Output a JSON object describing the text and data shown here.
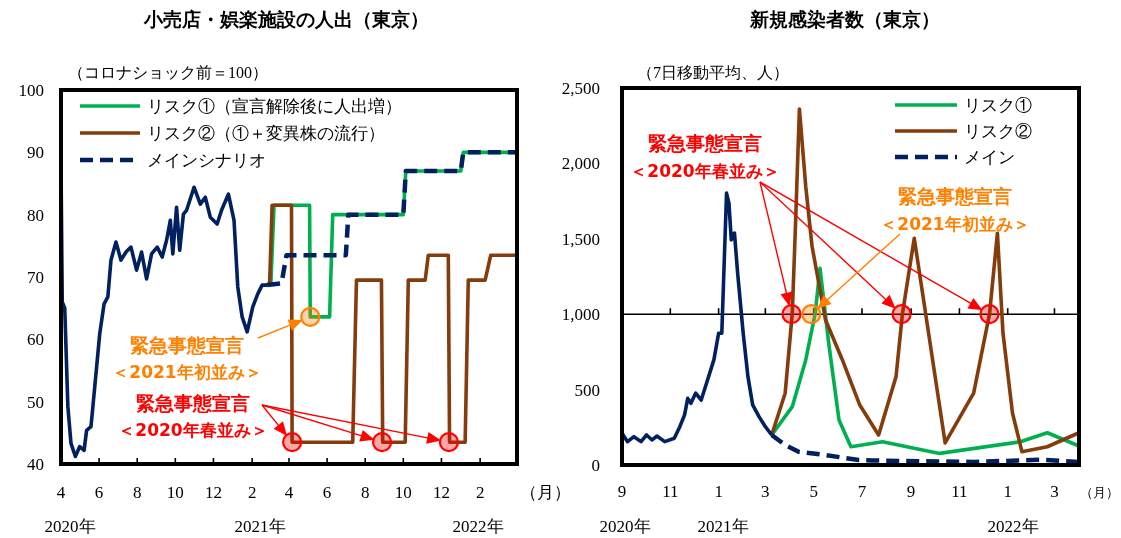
{
  "chart_data": [
    {
      "type": "line",
      "title": "小売店・娯楽施設の人出（東京）",
      "ylabel": "（コロナショック前＝100）",
      "xlabel": "（月）",
      "legend": "top left",
      "xlim": [
        "2020-04-01",
        "2022-04-01"
      ],
      "ylim": [
        40,
        100
      ],
      "yticks": [
        40,
        50,
        60,
        70,
        80,
        90,
        100
      ],
      "xticks": [
        {
          "value": "2020-04-01",
          "label": "4"
        },
        {
          "value": "2020-06-01",
          "label": "6"
        },
        {
          "value": "2020-08-01",
          "label": "8"
        },
        {
          "value": "2020-10-01",
          "label": "10"
        },
        {
          "value": "2020-12-01",
          "label": "12"
        },
        {
          "value": "2021-02-01",
          "label": "2"
        },
        {
          "value": "2021-04-01",
          "label": "4"
        },
        {
          "value": "2021-06-01",
          "label": "6"
        },
        {
          "value": "2021-08-01",
          "label": "8"
        },
        {
          "value": "2021-10-01",
          "label": "10"
        },
        {
          "value": "2021-12-01",
          "label": "12"
        },
        {
          "value": "2022-02-01",
          "label": "2"
        }
      ],
      "series": [
        {
          "name": "リスク①（宣言解除後に人出増）",
          "color": "#00b050",
          "line_style": "solid",
          "x": [
            "2021-02-25",
            "2021-03-03",
            "2021-03-08",
            "2021-05-04",
            "2021-05-05",
            "2021-06-05",
            "2021-06-10",
            "2021-10-01",
            "2021-10-05",
            "2022-01-01",
            "2022-01-05",
            "2022-04-01"
          ],
          "values": [
            68.7,
            69,
            81.5,
            81.5,
            63.6,
            63.6,
            80,
            80,
            87,
            87,
            90,
            90
          ]
        },
        {
          "name": "リスク②（①＋変異株の流行）",
          "color": "#843c0c",
          "line_style": "solid",
          "x": [
            "2021-02-25",
            "2021-03-01",
            "2021-03-05",
            "2021-04-05",
            "2021-04-06",
            "2021-07-12",
            "2021-07-18",
            "2021-08-27",
            "2021-08-29",
            "2021-10-04",
            "2021-10-09",
            "2021-11-05",
            "2021-11-10",
            "2021-12-12",
            "2021-12-14",
            "2022-01-08",
            "2022-01-13",
            "2022-02-09",
            "2022-02-18",
            "2022-04-01"
          ],
          "values": [
            68.7,
            69,
            81.5,
            81.5,
            43.5,
            43.5,
            69.5,
            69.5,
            43.5,
            43.5,
            69.5,
            69.5,
            73.5,
            73.5,
            43.5,
            43.5,
            69.5,
            69.5,
            73.5,
            73.5
          ]
        },
        {
          "name": "メインシナリオ",
          "color": "#002060",
          "line_style": "dashed",
          "x": [
            "2021-02-25",
            "2021-03-20",
            "2021-03-28",
            "2021-07-01",
            "2021-07-05",
            "2021-10-01",
            "2021-10-05",
            "2022-01-01",
            "2022-01-05",
            "2022-04-01"
          ],
          "values": [
            68.7,
            69,
            73.5,
            73.5,
            80,
            80,
            87,
            87,
            90,
            90
          ]
        },
        {
          "color": "#002060",
          "line_style": "solid",
          "x": [
            "2020-04-01",
            "2020-04-03",
            "2020-04-07",
            "2020-04-12",
            "2020-04-17",
            "2020-04-24",
            "2020-05-01",
            "2020-05-08",
            "2020-05-12",
            "2020-05-19",
            "2020-05-24",
            "2020-06-02",
            "2020-06-09",
            "2020-06-15",
            "2020-06-20",
            "2020-06-28",
            "2020-07-06",
            "2020-07-14",
            "2020-07-22",
            "2020-07-31",
            "2020-08-08",
            "2020-08-16",
            "2020-08-24",
            "2020-09-02",
            "2020-09-10",
            "2020-09-17",
            "2020-09-23",
            "2020-09-27",
            "2020-10-03",
            "2020-10-08",
            "2020-10-14",
            "2020-10-19",
            "2020-10-31",
            "2020-11-10",
            "2020-11-18",
            "2020-11-26",
            "2020-12-07",
            "2020-12-14",
            "2020-12-25",
            "2021-01-03",
            "2021-01-09",
            "2021-01-16",
            "2021-01-24",
            "2021-02-02",
            "2021-02-10",
            "2021-02-17",
            "2021-02-25"
          ],
          "values": [
            88,
            66,
            65,
            49.2,
            43.3,
            41.2,
            42.8,
            42.2,
            45.4,
            46,
            51.3,
            60.9,
            65.7,
            66.8,
            72.7,
            75.6,
            72.7,
            74,
            74.8,
            71.1,
            74,
            69.7,
            73.7,
            74.8,
            73.2,
            75.9,
            79.1,
            73.7,
            81.2,
            74.3,
            80.1,
            80.7,
            84.4,
            81.7,
            82.8,
            79.6,
            78.5,
            80.7,
            83.3,
            79.1,
            68.4,
            63.6,
            61.2,
            65.2,
            67.3,
            68.7,
            68.7
          ]
        },
        {
          "type": "scatter",
          "marker": "circle",
          "color": "#ff0000",
          "x": [
            "2021-04-06",
            "2021-08-28",
            "2021-12-13"
          ],
          "values": [
            43.5,
            43.5,
            43.5
          ]
        },
        {
          "type": "scatter",
          "marker": "circle",
          "color": "#ff8000",
          "x": [
            "2021-05-05"
          ],
          "values": [
            63.6
          ]
        }
      ],
      "annotations": [
        "緊急事態宣言",
        "＜2021年初並み＞",
        {
          "text": "緊急事態宣言",
          "x": "2021-04-06",
          "y": 43.5
        },
        "＜2020年春並み＞",
        "2020年",
        "2021年",
        "2022年"
      ]
    },
    {
      "type": "line",
      "title": "新規感染者数（東京）",
      "ylabel": "（7日移動平均、人）",
      "xlabel": "（月）",
      "legend": "top right",
      "xlim": [
        "2020-09-01",
        "2022-04-01"
      ],
      "ylim": [
        0,
        2500
      ],
      "yticks": [
        0,
        500,
        {
          "value": 1000,
          "label": "1,000"
        },
        {
          "value": 1500,
          "label": "1,500"
        },
        {
          "value": 2000,
          "label": "2,000"
        },
        {
          "value": 2500,
          "label": "2,500"
        }
      ],
      "xticks": [
        {
          "value": "2020-09-01",
          "label": "9"
        },
        {
          "value": "2020-11-01",
          "label": "11"
        },
        {
          "value": "2021-01-01",
          "label": "1"
        },
        {
          "value": "2021-03-01",
          "label": "3"
        },
        {
          "value": "2021-05-01",
          "label": "5"
        },
        {
          "value": "2021-07-01",
          "label": "7"
        },
        {
          "value": "2021-09-01",
          "label": "9"
        },
        {
          "value": "2021-11-01",
          "label": "11"
        },
        {
          "value": "2022-01-01",
          "label": "1"
        },
        {
          "value": "2022-03-01",
          "label": "3"
        }
      ],
      "ref_lines": [
        {
          "axis": "y",
          "value": 1000,
          "color": "#000000"
        }
      ],
      "series": [
        {
          "name": "リスク①",
          "color": "#00b050",
          "line_style": "solid",
          "x": [
            "2021-03-09",
            "2021-04-04",
            "2021-04-21",
            "2021-05-03",
            "2021-05-09",
            "2021-05-20",
            "2021-06-02",
            "2021-06-17",
            "2021-07-27",
            "2021-10-07",
            "2022-01-17",
            "2022-02-20",
            "2022-04-01"
          ],
          "values": [
            199,
            387,
            697,
            1007,
            1305,
            807,
            299,
            121,
            154,
            77,
            154,
            214,
            126
          ]
        },
        {
          "name": "リスク②",
          "color": "#843c0c",
          "line_style": "solid",
          "x": [
            "2021-03-09",
            "2021-03-26",
            "2021-04-04",
            "2021-04-08",
            "2021-04-13",
            "2021-04-21",
            "2021-04-29",
            "2021-05-16",
            "2021-06-06",
            "2021-06-28",
            "2021-07-22",
            "2021-08-13",
            "2021-08-21",
            "2021-09-05",
            "2021-10-14",
            "2021-11-19",
            "2021-12-09",
            "2021-12-19",
            "2021-12-26",
            "2022-01-07",
            "2022-01-19",
            "2022-02-20",
            "2022-04-01"
          ],
          "values": [
            199,
            476,
            1007,
            1582,
            2361,
            1847,
            1449,
            962,
            700,
            400,
            199,
            586,
            1000,
            1504,
            146,
            476,
            1000,
            1537,
            875,
            345,
            88,
            121,
            214
          ]
        },
        {
          "name": "メイン",
          "color": "#002060",
          "line_style": "dashed",
          "x": [
            "2021-03-09",
            "2021-03-26",
            "2021-04-12",
            "2021-05-16",
            "2021-06-27",
            "2021-07-14",
            "2021-11-19",
            "2022-02-12",
            "2022-04-01"
          ],
          "values": [
            199,
            133,
            88,
            66,
            33,
            30,
            20,
            35,
            20
          ]
        },
        {
          "color": "#002060",
          "line_style": "solid",
          "x": [
            "2020-09-01",
            "2020-09-08",
            "2020-09-16",
            "2020-09-25",
            "2020-10-02",
            "2020-10-09",
            "2020-10-15",
            "2020-10-25",
            "2020-11-06",
            "2020-11-13",
            "2020-11-19",
            "2020-11-23",
            "2020-11-27",
            "2020-12-03",
            "2020-12-10",
            "2020-12-18",
            "2020-12-26",
            "2021-01-01",
            "2021-01-05",
            "2021-01-11",
            "2021-01-14",
            "2021-01-17",
            "2021-01-21",
            "2021-01-25",
            "2021-02-01",
            "2021-02-07",
            "2021-02-13",
            "2021-02-21",
            "2021-03-01",
            "2021-03-09"
          ],
          "values": [
            210,
            155,
            188,
            155,
            199,
            166,
            192,
            155,
            177,
            254,
            332,
            442,
            409,
            476,
            431,
            564,
            697,
            874,
            874,
            1803,
            1737,
            1493,
            1538,
            1272,
            874,
            586,
            398,
            321,
            254,
            199
          ]
        },
        {
          "type": "scatter",
          "marker": "circle",
          "color": "#ff0000",
          "x": [
            "2021-04-03",
            "2021-08-20",
            "2021-12-09"
          ],
          "values": [
            1000,
            1000,
            1000
          ]
        },
        {
          "type": "scatter",
          "marker": "circle",
          "color": "#ff8000",
          "x": [
            "2021-04-28"
          ],
          "values": [
            1000
          ]
        }
      ],
      "annotations": [
        "緊急事態宣言",
        "＜2020年春並み＞",
        "緊急事態宣言",
        "＜2021年初並み＞",
        "2020年",
        "2021年",
        "2022年"
      ]
    }
  ]
}
